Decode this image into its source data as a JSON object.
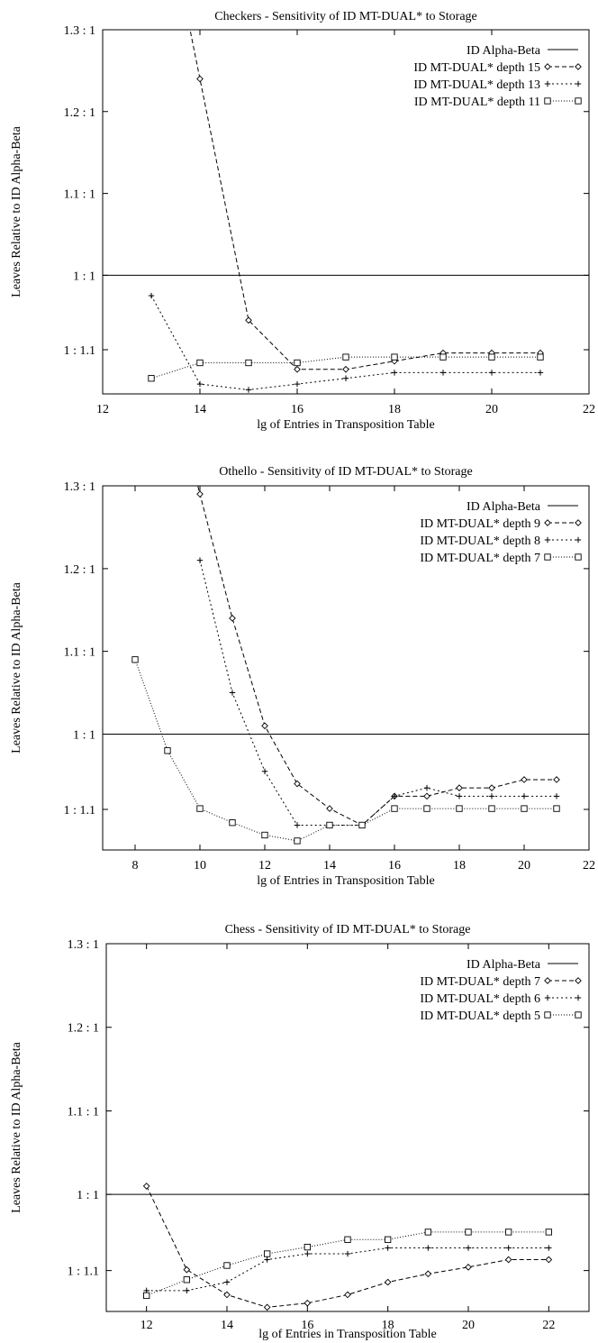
{
  "chart_data": [
    {
      "type": "line",
      "title": "Checkers - Sensitivity of ID MT-DUAL* to Storage",
      "xlabel": "lg of Entries in Transposition Table",
      "ylabel": "Leaves Relative to ID Alpha-Beta",
      "xlim": [
        12,
        22
      ],
      "ylim": [
        0.855,
        1.3
      ],
      "xticks": [
        12,
        14,
        16,
        18,
        20,
        22
      ],
      "yticks": [
        {
          "value": 1.3,
          "label": "1.3 : 1"
        },
        {
          "value": 1.2,
          "label": "1.2 : 1"
        },
        {
          "value": 1.1,
          "label": "1.1 : 1"
        },
        {
          "value": 1.0,
          "label": "1 : 1"
        },
        {
          "value": 0.909,
          "label": "1 : 1.1"
        }
      ],
      "legend_position": "top-right",
      "reference": {
        "name": "ID Alpha-Beta",
        "value": 1.0
      },
      "series": [
        {
          "name": "ID MT-DUAL* depth 15",
          "marker": "diamond",
          "dash": "5,3",
          "x": [
            14,
            15,
            16,
            17,
            18,
            19,
            20,
            21
          ],
          "y": [
            1.24,
            0.945,
            0.885,
            0.885,
            0.895,
            0.905,
            0.905,
            0.905
          ]
        },
        {
          "name": "ID MT-DUAL* depth 13",
          "marker": "plus",
          "dash": "2,3",
          "x": [
            13,
            14,
            15,
            16,
            17,
            18,
            19,
            20,
            21
          ],
          "y": [
            0.975,
            0.867,
            0.86,
            0.867,
            0.874,
            0.881,
            0.881,
            0.881,
            0.881
          ]
        },
        {
          "name": "ID MT-DUAL* depth 11",
          "marker": "square",
          "dash": "1,2",
          "x": [
            13,
            14,
            15,
            16,
            17,
            18,
            19,
            20,
            21
          ],
          "y": [
            0.874,
            0.893,
            0.893,
            0.893,
            0.9,
            0.9,
            0.9,
            0.9,
            0.9
          ]
        }
      ]
    },
    {
      "type": "line",
      "title": "Othello - Sensitivity of ID MT-DUAL* to Storage",
      "xlabel": "lg of Entries in Transposition Table",
      "ylabel": "Leaves Relative to ID Alpha-Beta",
      "xlim": [
        7,
        22
      ],
      "ylim": [
        0.86,
        1.3
      ],
      "xticks": [
        8,
        10,
        12,
        14,
        16,
        18,
        20,
        22
      ],
      "yticks": [
        {
          "value": 1.3,
          "label": "1.3 : 1"
        },
        {
          "value": 1.2,
          "label": "1.2 : 1"
        },
        {
          "value": 1.1,
          "label": "1.1 : 1"
        },
        {
          "value": 1.0,
          "label": "1 : 1"
        },
        {
          "value": 0.909,
          "label": "1 : 1.1"
        }
      ],
      "legend_position": "top-right",
      "reference": {
        "name": "ID Alpha-Beta",
        "value": 1.0
      },
      "series": [
        {
          "name": "ID MT-DUAL* depth 9",
          "marker": "diamond",
          "dash": "5,3",
          "x": [
            10,
            11,
            12,
            13,
            14,
            15,
            16,
            17,
            18,
            19,
            20,
            21
          ],
          "y": [
            1.29,
            1.14,
            1.01,
            0.94,
            0.91,
            0.89,
            0.925,
            0.925,
            0.935,
            0.935,
            0.945,
            0.945
          ]
        },
        {
          "name": "ID MT-DUAL* depth 8",
          "marker": "plus",
          "dash": "2,3",
          "x": [
            10,
            11,
            12,
            13,
            14,
            15,
            16,
            17,
            18,
            19,
            20,
            21
          ],
          "y": [
            1.21,
            1.05,
            0.955,
            0.89,
            0.89,
            0.89,
            0.925,
            0.935,
            0.925,
            0.925,
            0.925,
            0.925
          ]
        },
        {
          "name": "ID MT-DUAL* depth 7",
          "marker": "square",
          "dash": "1,2",
          "x": [
            8,
            9,
            10,
            11,
            12,
            13,
            14,
            15,
            16,
            17,
            18,
            19,
            20,
            21
          ],
          "y": [
            1.09,
            0.98,
            0.91,
            0.893,
            0.878,
            0.871,
            0.89,
            0.89,
            0.91,
            0.91,
            0.91,
            0.91,
            0.91,
            0.91
          ]
        }
      ]
    },
    {
      "type": "line",
      "title": "Chess - Sensitivity of ID MT-DUAL* to Storage",
      "xlabel": "lg of Entries in Transposition Table",
      "ylabel": "Leaves Relative to ID Alpha-Beta",
      "xlim": [
        11,
        23
      ],
      "ylim": [
        0.86,
        1.3
      ],
      "xticks": [
        12,
        14,
        16,
        18,
        20,
        22
      ],
      "yticks": [
        {
          "value": 1.3,
          "label": "1.3 : 1"
        },
        {
          "value": 1.2,
          "label": "1.2 : 1"
        },
        {
          "value": 1.1,
          "label": "1.1 : 1"
        },
        {
          "value": 1.0,
          "label": "1 : 1"
        },
        {
          "value": 0.909,
          "label": "1 : 1.1"
        }
      ],
      "legend_position": "top-right",
      "reference": {
        "name": "ID Alpha-Beta",
        "value": 1.0
      },
      "series": [
        {
          "name": "ID MT-DUAL* depth 7",
          "marker": "diamond",
          "dash": "5,3",
          "x": [
            12,
            13,
            14,
            15,
            16,
            17,
            18,
            19,
            20,
            21,
            22
          ],
          "y": [
            1.01,
            0.91,
            0.88,
            0.865,
            0.87,
            0.88,
            0.895,
            0.905,
            0.913,
            0.922,
            0.922
          ]
        },
        {
          "name": "ID MT-DUAL* depth 6",
          "marker": "plus",
          "dash": "2,3",
          "x": [
            12,
            13,
            14,
            15,
            16,
            17,
            18,
            19,
            20,
            21,
            22
          ],
          "y": [
            0.885,
            0.885,
            0.895,
            0.922,
            0.929,
            0.929,
            0.936,
            0.936,
            0.936,
            0.936,
            0.936
          ]
        },
        {
          "name": "ID MT-DUAL* depth 5",
          "marker": "square",
          "dash": "1,2",
          "x": [
            12,
            13,
            14,
            15,
            16,
            17,
            18,
            19,
            20,
            21,
            22
          ],
          "y": [
            0.879,
            0.898,
            0.915,
            0.929,
            0.937,
            0.946,
            0.946,
            0.955,
            0.955,
            0.955,
            0.955
          ]
        }
      ]
    }
  ]
}
